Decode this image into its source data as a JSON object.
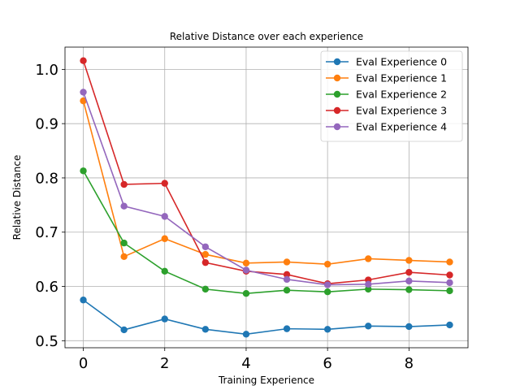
{
  "chart_data": {
    "type": "line",
    "title": "Relative Distance over each experience",
    "xlabel": "Training Experience",
    "ylabel": "Relative Distance",
    "x": [
      0,
      1,
      2,
      3,
      4,
      5,
      6,
      7,
      8,
      9
    ],
    "xlim": [
      -0.45,
      9.45
    ],
    "ylim": [
      0.487,
      1.041
    ],
    "xticks": [
      0,
      2,
      4,
      6,
      8
    ],
    "yticks": [
      0.5,
      0.6,
      0.7,
      0.8,
      0.9,
      1.0
    ],
    "xtick_labels": [
      "0",
      "2",
      "4",
      "6",
      "8"
    ],
    "ytick_labels": [
      "0.5",
      "0.6",
      "0.7",
      "0.8",
      "0.9",
      "1.0"
    ],
    "grid": true,
    "legend_position": "top-right",
    "series": [
      {
        "name": "Eval Experience 0",
        "color": "#1f77b4",
        "values": [
          0.575,
          0.52,
          0.54,
          0.521,
          0.512,
          0.522,
          0.521,
          0.527,
          0.526,
          0.529
        ]
      },
      {
        "name": "Eval Experience 1",
        "color": "#ff7f0e",
        "values": [
          0.942,
          0.655,
          0.688,
          0.659,
          0.643,
          0.645,
          0.641,
          0.651,
          0.648,
          0.645
        ]
      },
      {
        "name": "Eval Experience 2",
        "color": "#2ca02c",
        "values": [
          0.813,
          0.68,
          0.628,
          0.595,
          0.587,
          0.593,
          0.59,
          0.595,
          0.594,
          0.592
        ]
      },
      {
        "name": "Eval Experience 3",
        "color": "#d62728",
        "values": [
          1.016,
          0.788,
          0.79,
          0.644,
          0.628,
          0.622,
          0.605,
          0.612,
          0.626,
          0.621
        ]
      },
      {
        "name": "Eval Experience 4",
        "color": "#9467bd",
        "values": [
          0.958,
          0.748,
          0.729,
          0.673,
          0.63,
          0.613,
          0.603,
          0.604,
          0.61,
          0.607
        ]
      }
    ]
  }
}
